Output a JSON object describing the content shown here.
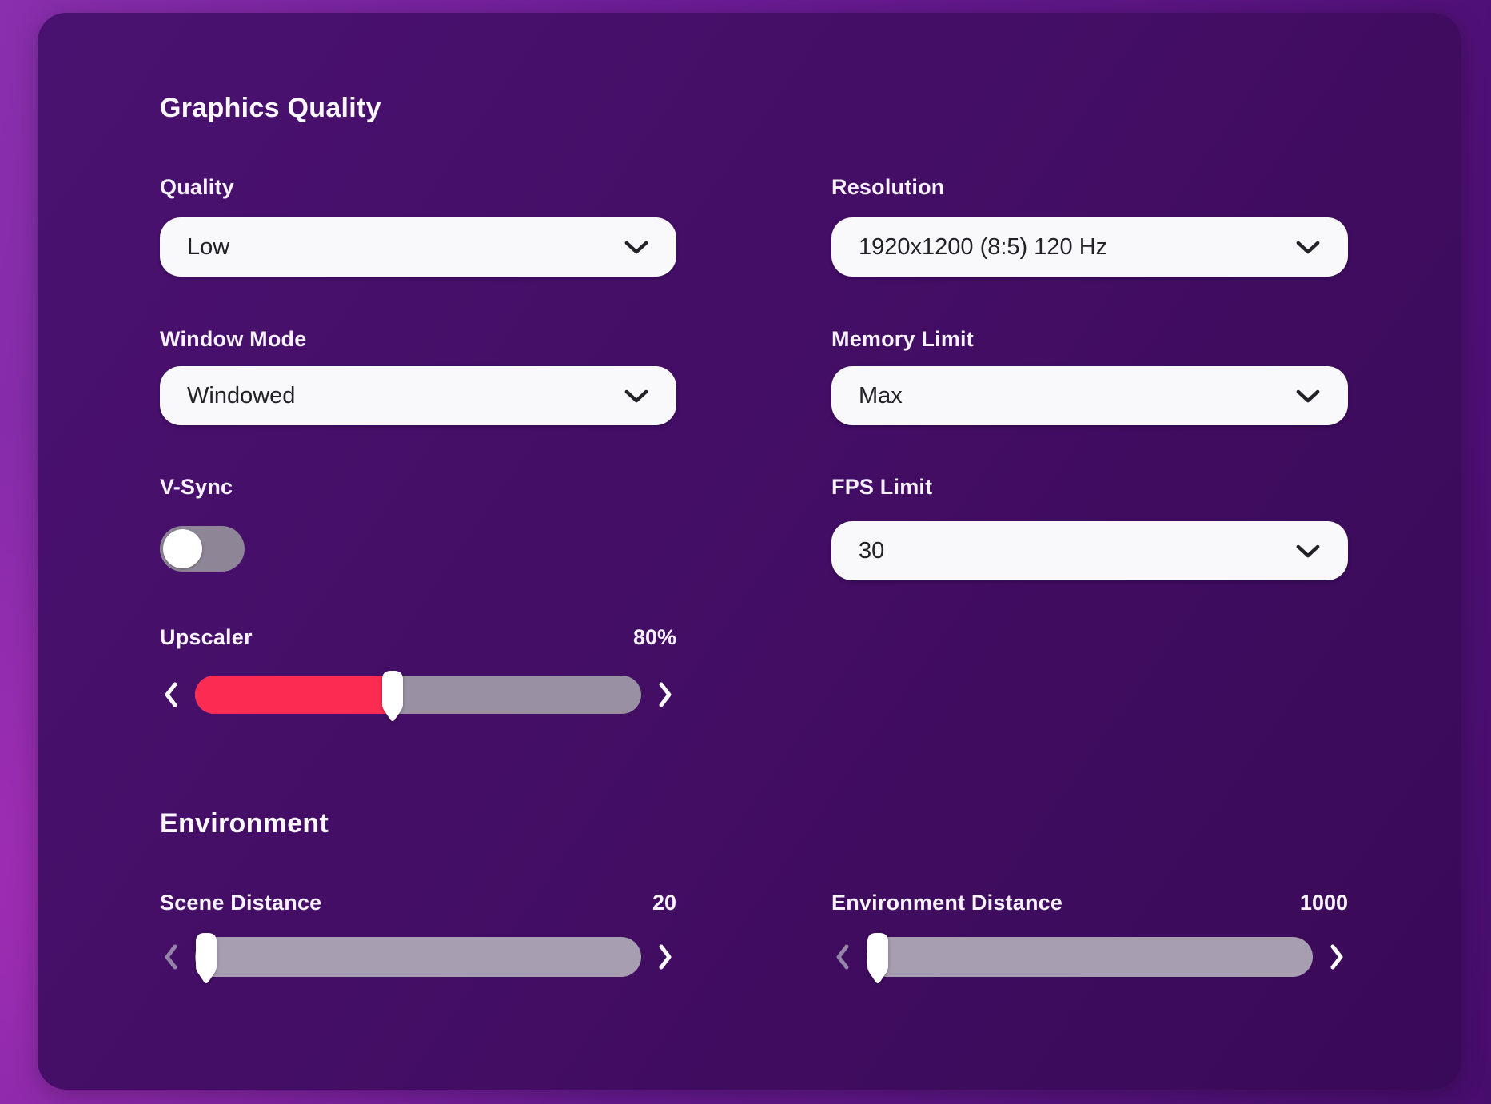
{
  "panel": {
    "sections": {
      "graphics": {
        "title": "Graphics Quality"
      },
      "environment": {
        "title": "Environment"
      }
    },
    "controls": {
      "quality": {
        "label": "Quality",
        "value": "Low"
      },
      "resolution": {
        "label": "Resolution",
        "value": "1920x1200 (8:5) 120 Hz"
      },
      "window_mode": {
        "label": "Window Mode",
        "value": "Windowed"
      },
      "memory_limit": {
        "label": "Memory Limit",
        "value": "Max"
      },
      "vsync": {
        "label": "V-Sync",
        "state": "off"
      },
      "fps_limit": {
        "label": "FPS Limit",
        "value": "30"
      },
      "upscaler": {
        "label": "Upscaler",
        "value": "80%",
        "thumb_pct": 44
      },
      "scene_distance": {
        "label": "Scene Distance",
        "value": "20",
        "thumb_pct": 0
      },
      "environment_distance": {
        "label": "Environment Distance",
        "value": "1000",
        "thumb_pct": 0
      }
    },
    "icons": {
      "dropdown": "chevron-down-icon",
      "slider_prev": "chevron-left-icon",
      "slider_next": "chevron-right-icon"
    },
    "colors": {
      "accent_red": "#fb2b52",
      "panel_bg": "#420d63",
      "background_purple": "#6d1d97",
      "control_bg": "#f9f8fa",
      "track_gray": "#9a90a4",
      "toggle_off_gray": "#8e8596"
    }
  }
}
